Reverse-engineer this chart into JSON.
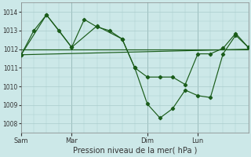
{
  "background_color": "#cce8e8",
  "grid_color": "#aacccc",
  "line_color": "#1a5c1a",
  "xlabel": "Pression niveau de la mer( hPa )",
  "ylim": [
    1007.5,
    1014.5
  ],
  "yticks": [
    1008,
    1009,
    1010,
    1011,
    1012,
    1013,
    1014
  ],
  "xtick_labels": [
    "Sam",
    "Mar",
    "Dim",
    "Lun"
  ],
  "xtick_positions": [
    0,
    16,
    40,
    56
  ],
  "total_points": 72,
  "series_diagonal": [
    [
      0,
      1011.7
    ],
    [
      72,
      1012.0
    ]
  ],
  "series_flat": [
    [
      0,
      1012.0
    ],
    [
      40,
      1012.0
    ],
    [
      72,
      1012.0
    ]
  ],
  "series_upper": [
    [
      0,
      1011.7
    ],
    [
      4,
      1013.0
    ],
    [
      8,
      1013.85
    ],
    [
      12,
      1013.0
    ],
    [
      16,
      1012.1
    ],
    [
      20,
      1013.6
    ],
    [
      24,
      1013.2
    ],
    [
      28,
      1013.0
    ],
    [
      32,
      1012.55
    ],
    [
      36,
      1011.0
    ],
    [
      40,
      1010.5
    ],
    [
      44,
      1010.5
    ],
    [
      48,
      1010.5
    ],
    [
      52,
      1010.1
    ],
    [
      56,
      1011.75
    ],
    [
      60,
      1011.75
    ],
    [
      64,
      1012.05
    ],
    [
      68,
      1012.85
    ],
    [
      72,
      1012.1
    ]
  ],
  "series_lower": [
    [
      0,
      1011.7
    ],
    [
      8,
      1013.85
    ],
    [
      16,
      1012.1
    ],
    [
      24,
      1013.25
    ],
    [
      32,
      1012.55
    ],
    [
      36,
      1011.0
    ],
    [
      40,
      1009.05
    ],
    [
      44,
      1008.3
    ],
    [
      48,
      1008.8
    ],
    [
      52,
      1009.8
    ],
    [
      56,
      1009.5
    ],
    [
      60,
      1009.4
    ],
    [
      64,
      1011.75
    ],
    [
      68,
      1012.75
    ],
    [
      72,
      1012.1
    ]
  ]
}
